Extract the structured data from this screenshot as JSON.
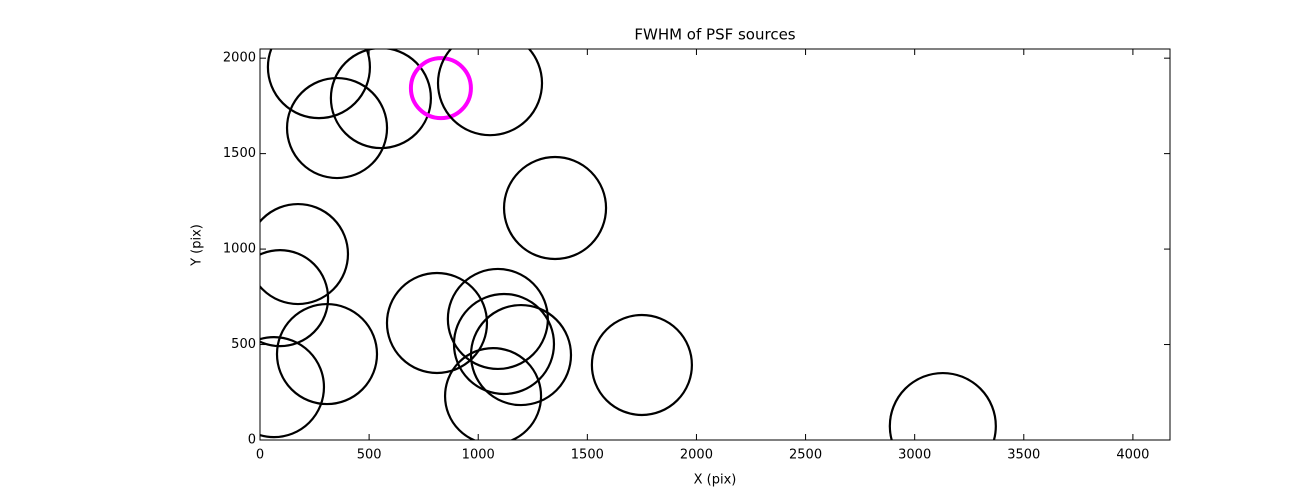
{
  "chart_data": {
    "type": "scatter",
    "title": "FWHM of PSF sources",
    "xlabel": "X (pix)",
    "ylabel": "Y (pix)",
    "x": [
      270,
      554,
      353,
      829,
      1054,
      1352,
      174,
      92,
      307,
      64,
      811,
      1090,
      1118,
      1196,
      1068,
      1750,
      3129
    ],
    "y": [
      1953,
      1791,
      1634,
      1843,
      1869,
      1215,
      974,
      743,
      450,
      277,
      613,
      634,
      503,
      445,
      230,
      393,
      73
    ],
    "sizes": [
      51,
      50,
      50,
      30,
      52,
      51,
      50,
      48,
      50,
      50,
      50,
      50,
      50,
      50,
      48,
      50,
      53
    ],
    "colors": [
      "#000000",
      "#000000",
      "#000000",
      "#ff00ff",
      "#000000",
      "#000000",
      "#000000",
      "#000000",
      "#000000",
      "#000000",
      "#000000",
      "#000000",
      "#000000",
      "#000000",
      "#000000",
      "#000000",
      "#000000"
    ],
    "xlim": [
      0,
      4170
    ],
    "ylim": [
      0,
      2048
    ],
    "xticks": [
      0,
      500,
      1000,
      1500,
      2000,
      2500,
      3000,
      3500,
      4000
    ],
    "yticks": [
      0,
      500,
      1000,
      1500,
      2000
    ]
  }
}
